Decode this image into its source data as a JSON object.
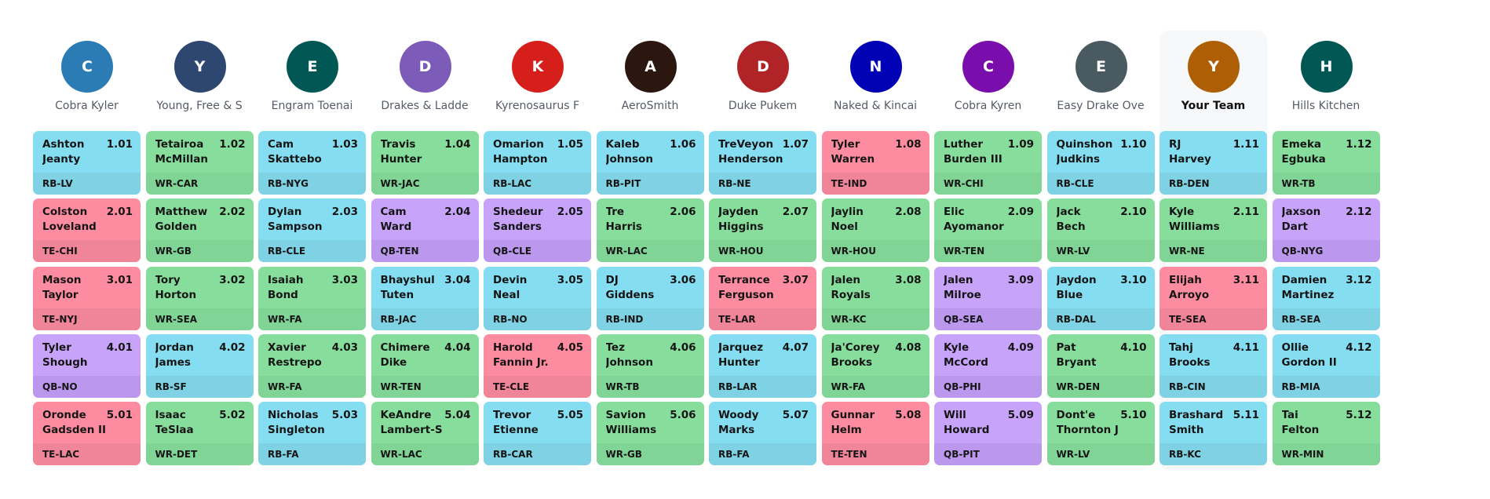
{
  "colors": {
    "RB": "#85ddf1",
    "WR": "#87dd9b",
    "TE": "#fe8ca1",
    "QB": "#c7a3fa"
  },
  "teams": [
    {
      "initial": "C",
      "name": "Cobra Kyler",
      "color": "#2b7bb4"
    },
    {
      "initial": "Y",
      "name": "Young, Free & S",
      "color": "#2d4770"
    },
    {
      "initial": "E",
      "name": "Engram Toenai",
      "color": "#015754"
    },
    {
      "initial": "D",
      "name": "Drakes & Ladde",
      "color": "#7d5bb8"
    },
    {
      "initial": "K",
      "name": "Kyrenosaurus F",
      "color": "#d61f1a"
    },
    {
      "initial": "A",
      "name": "AeroSmith",
      "color": "#2b1710"
    },
    {
      "initial": "D",
      "name": "Duke Pukem",
      "color": "#b02428"
    },
    {
      "initial": "N",
      "name": "Naked & Kincai",
      "color": "#0000b4"
    },
    {
      "initial": "C",
      "name": "Cobra Kyren",
      "color": "#7a0ead"
    },
    {
      "initial": "E",
      "name": "Easy Drake Ove",
      "color": "#4a5a61"
    },
    {
      "initial": "Y",
      "name": "Your Team",
      "color": "#ae5f05",
      "mine": true
    },
    {
      "initial": "H",
      "name": "Hills Kitchen",
      "color": "#015754"
    }
  ],
  "rounds": [
    [
      {
        "first": "Ashton",
        "last": "Jeanty",
        "pick": "1.01",
        "pos": "RB-LV"
      },
      {
        "first": "Tetairoa",
        "last": "McMillan",
        "pick": "1.02",
        "pos": "WR-CAR"
      },
      {
        "first": "Cam",
        "last": "Skattebo",
        "pick": "1.03",
        "pos": "RB-NYG"
      },
      {
        "first": "Travis",
        "last": "Hunter",
        "pick": "1.04",
        "pos": "WR-JAC"
      },
      {
        "first": "Omarion",
        "last": "Hampton",
        "pick": "1.05",
        "pos": "RB-LAC"
      },
      {
        "first": "Kaleb",
        "last": "Johnson",
        "pick": "1.06",
        "pos": "RB-PIT"
      },
      {
        "first": "TreVeyon",
        "last": "Henderson",
        "pick": "1.07",
        "pos": "RB-NE"
      },
      {
        "first": "Tyler",
        "last": "Warren",
        "pick": "1.08",
        "pos": "TE-IND"
      },
      {
        "first": "Luther",
        "last": "Burden III",
        "pick": "1.09",
        "pos": "WR-CHI"
      },
      {
        "first": "Quinshon",
        "last": "Judkins",
        "pick": "1.10",
        "pos": "RB-CLE"
      },
      {
        "first": "RJ",
        "last": "Harvey",
        "pick": "1.11",
        "pos": "RB-DEN"
      },
      {
        "first": "Emeka",
        "last": "Egbuka",
        "pick": "1.12",
        "pos": "WR-TB"
      }
    ],
    [
      {
        "first": "Colston",
        "last": "Loveland",
        "pick": "2.01",
        "pos": "TE-CHI"
      },
      {
        "first": "Matthew",
        "last": "Golden",
        "pick": "2.02",
        "pos": "WR-GB"
      },
      {
        "first": "Dylan",
        "last": "Sampson",
        "pick": "2.03",
        "pos": "RB-CLE"
      },
      {
        "first": "Cam",
        "last": "Ward",
        "pick": "2.04",
        "pos": "QB-TEN"
      },
      {
        "first": "Shedeur",
        "last": "Sanders",
        "pick": "2.05",
        "pos": "QB-CLE"
      },
      {
        "first": "Tre",
        "last": "Harris",
        "pick": "2.06",
        "pos": "WR-LAC"
      },
      {
        "first": "Jayden",
        "last": "Higgins",
        "pick": "2.07",
        "pos": "WR-HOU"
      },
      {
        "first": "Jaylin",
        "last": "Noel",
        "pick": "2.08",
        "pos": "WR-HOU"
      },
      {
        "first": "Elic",
        "last": "Ayomanor",
        "pick": "2.09",
        "pos": "WR-TEN"
      },
      {
        "first": "Jack",
        "last": "Bech",
        "pick": "2.10",
        "pos": "WR-LV"
      },
      {
        "first": "Kyle",
        "last": "Williams",
        "pick": "2.11",
        "pos": "WR-NE"
      },
      {
        "first": "Jaxson",
        "last": "Dart",
        "pick": "2.12",
        "pos": "QB-NYG"
      }
    ],
    [
      {
        "first": "Mason",
        "last": "Taylor",
        "pick": "3.01",
        "pos": "TE-NYJ"
      },
      {
        "first": "Tory",
        "last": "Horton",
        "pick": "3.02",
        "pos": "WR-SEA"
      },
      {
        "first": "Isaiah",
        "last": "Bond",
        "pick": "3.03",
        "pos": "WR-FA"
      },
      {
        "first": "Bhayshul",
        "last": "Tuten",
        "pick": "3.04",
        "pos": "RB-JAC"
      },
      {
        "first": "Devin",
        "last": "Neal",
        "pick": "3.05",
        "pos": "RB-NO"
      },
      {
        "first": "DJ",
        "last": "Giddens",
        "pick": "3.06",
        "pos": "RB-IND"
      },
      {
        "first": "Terrance",
        "last": "Ferguson",
        "pick": "3.07",
        "pos": "TE-LAR"
      },
      {
        "first": "Jalen",
        "last": "Royals",
        "pick": "3.08",
        "pos": "WR-KC"
      },
      {
        "first": "Jalen",
        "last": "Milroe",
        "pick": "3.09",
        "pos": "QB-SEA"
      },
      {
        "first": "Jaydon",
        "last": "Blue",
        "pick": "3.10",
        "pos": "RB-DAL"
      },
      {
        "first": "Elijah",
        "last": "Arroyo",
        "pick": "3.11",
        "pos": "TE-SEA"
      },
      {
        "first": "Damien",
        "last": "Martinez",
        "pick": "3.12",
        "pos": "RB-SEA"
      }
    ],
    [
      {
        "first": "Tyler",
        "last": "Shough",
        "pick": "4.01",
        "pos": "QB-NO"
      },
      {
        "first": "Jordan",
        "last": "James",
        "pick": "4.02",
        "pos": "RB-SF"
      },
      {
        "first": "Xavier",
        "last": "Restrepo",
        "pick": "4.03",
        "pos": "WR-FA"
      },
      {
        "first": "Chimere",
        "last": "Dike",
        "pick": "4.04",
        "pos": "WR-TEN"
      },
      {
        "first": "Harold",
        "last": "Fannin Jr.",
        "pick": "4.05",
        "pos": "TE-CLE"
      },
      {
        "first": "Tez",
        "last": "Johnson",
        "pick": "4.06",
        "pos": "WR-TB"
      },
      {
        "first": "Jarquez",
        "last": "Hunter",
        "pick": "4.07",
        "pos": "RB-LAR"
      },
      {
        "first": "Ja'Corey",
        "last": "Brooks",
        "pick": "4.08",
        "pos": "WR-FA"
      },
      {
        "first": "Kyle",
        "last": "McCord",
        "pick": "4.09",
        "pos": "QB-PHI"
      },
      {
        "first": "Pat",
        "last": "Bryant",
        "pick": "4.10",
        "pos": "WR-DEN"
      },
      {
        "first": "Tahj",
        "last": "Brooks",
        "pick": "4.11",
        "pos": "RB-CIN"
      },
      {
        "first": "Ollie",
        "last": "Gordon II",
        "pick": "4.12",
        "pos": "RB-MIA"
      }
    ],
    [
      {
        "first": "Oronde",
        "last": "Gadsden II",
        "pick": "5.01",
        "pos": "TE-LAC"
      },
      {
        "first": "Isaac",
        "last": "TeSlaa",
        "pick": "5.02",
        "pos": "WR-DET"
      },
      {
        "first": "Nicholas",
        "last": "Singleton",
        "pick": "5.03",
        "pos": "RB-FA"
      },
      {
        "first": "KeAndre",
        "last": "Lambert-S",
        "pick": "5.04",
        "pos": "WR-LAC"
      },
      {
        "first": "Trevor",
        "last": "Etienne",
        "pick": "5.05",
        "pos": "RB-CAR"
      },
      {
        "first": "Savion",
        "last": "Williams",
        "pick": "5.06",
        "pos": "WR-GB"
      },
      {
        "first": "Woody",
        "last": "Marks",
        "pick": "5.07",
        "pos": "RB-FA"
      },
      {
        "first": "Gunnar",
        "last": "Helm",
        "pick": "5.08",
        "pos": "TE-TEN"
      },
      {
        "first": "Will",
        "last": "Howard",
        "pick": "5.09",
        "pos": "QB-PIT"
      },
      {
        "first": "Dont'e",
        "last": "Thornton J",
        "pick": "5.10",
        "pos": "WR-LV"
      },
      {
        "first": "Brashard",
        "last": "Smith",
        "pick": "5.11",
        "pos": "RB-KC"
      },
      {
        "first": "Tai",
        "last": "Felton",
        "pick": "5.12",
        "pos": "WR-MIN"
      }
    ]
  ]
}
